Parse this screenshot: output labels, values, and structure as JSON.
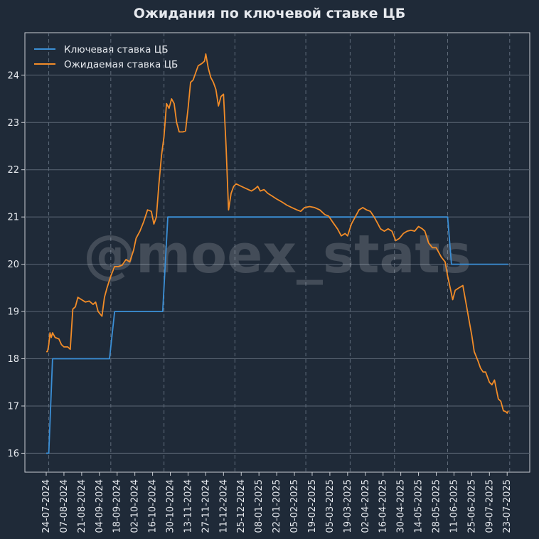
{
  "chart_data": {
    "type": "line",
    "title": "Ожидания по ключевой ставке ЦБ",
    "watermark": "@moex_stats",
    "xlabel": "",
    "ylabel": "",
    "x_start": "2024-07-24",
    "x_end": "2025-07-24",
    "ylim": [
      15.6,
      24.9
    ],
    "yticks": [
      16,
      17,
      18,
      19,
      20,
      21,
      22,
      23,
      24
    ],
    "xtick_labels": [
      "24-07-2024",
      "07-08-2024",
      "21-08-2024",
      "04-09-2024",
      "18-09-2024",
      "02-10-2024",
      "16-10-2024",
      "30-10-2024",
      "13-11-2024",
      "27-11-2024",
      "11-12-2024",
      "25-12-2024",
      "08-01-2025",
      "22-01-2025",
      "05-02-2025",
      "19-02-2025",
      "05-03-2025",
      "19-03-2025",
      "02-04-2025",
      "16-04-2025",
      "30-04-2025",
      "14-05-2025",
      "28-05-2025",
      "11-06-2025",
      "25-06-2025",
      "09-07-2025",
      "23-07-2025"
    ],
    "grid": {
      "horizontal": "solid",
      "vertical_dashed_at": [
        "2024-07-26",
        "2024-09-13",
        "2024-10-25",
        "2024-12-20",
        "2025-02-14",
        "2025-03-21",
        "2025-04-25",
        "2025-06-06",
        "2025-07-25"
      ]
    },
    "legend_position": "top-left",
    "colors": {
      "background": "#1f2a38",
      "key_rate": "#3b8fd6",
      "expected_rate": "#f28c28",
      "grid": "#5b6674",
      "axis": "#c8ccd2"
    },
    "series": [
      {
        "name": "Ключевая ставка ЦБ",
        "color": "#3b8fd6",
        "points": [
          [
            "2024-07-24",
            16
          ],
          [
            "2024-07-26",
            16
          ],
          [
            "2024-07-29",
            18
          ],
          [
            "2024-09-12",
            18
          ],
          [
            "2024-09-16",
            19
          ],
          [
            "2024-10-24",
            19
          ],
          [
            "2024-10-28",
            21
          ],
          [
            "2025-06-06",
            21
          ],
          [
            "2025-06-09",
            20
          ],
          [
            "2025-07-24",
            20
          ]
        ]
      },
      {
        "name": "Ожидаемая ставка ЦБ",
        "color": "#f28c28",
        "points": [
          [
            "2024-07-24",
            18.15
          ],
          [
            "2024-07-25",
            18.15
          ],
          [
            "2024-07-26",
            18.3
          ],
          [
            "2024-07-27",
            18.55
          ],
          [
            "2024-07-28",
            18.45
          ],
          [
            "2024-07-29",
            18.55
          ],
          [
            "2024-07-31",
            18.45
          ],
          [
            "2024-08-03",
            18.42
          ],
          [
            "2024-08-05",
            18.3
          ],
          [
            "2024-08-07",
            18.25
          ],
          [
            "2024-08-10",
            18.25
          ],
          [
            "2024-08-12",
            18.2
          ],
          [
            "2024-08-14",
            19.05
          ],
          [
            "2024-08-16",
            19.1
          ],
          [
            "2024-08-18",
            19.3
          ],
          [
            "2024-08-21",
            19.25
          ],
          [
            "2024-08-24",
            19.2
          ],
          [
            "2024-08-27",
            19.22
          ],
          [
            "2024-08-30",
            19.15
          ],
          [
            "2024-09-01",
            19.2
          ],
          [
            "2024-09-03",
            19.0
          ],
          [
            "2024-09-06",
            18.9
          ],
          [
            "2024-09-08",
            19.3
          ],
          [
            "2024-09-10",
            19.5
          ],
          [
            "2024-09-13",
            19.75
          ],
          [
            "2024-09-16",
            19.95
          ],
          [
            "2024-09-19",
            19.95
          ],
          [
            "2024-09-22",
            19.98
          ],
          [
            "2024-09-25",
            20.1
          ],
          [
            "2024-09-28",
            20.05
          ],
          [
            "2024-10-01",
            20.3
          ],
          [
            "2024-10-03",
            20.55
          ],
          [
            "2024-10-06",
            20.7
          ],
          [
            "2024-10-09",
            20.9
          ],
          [
            "2024-10-12",
            21.15
          ],
          [
            "2024-10-15",
            21.12
          ],
          [
            "2024-10-17",
            20.85
          ],
          [
            "2024-10-19",
            21.0
          ],
          [
            "2024-10-21",
            21.7
          ],
          [
            "2024-10-23",
            22.3
          ],
          [
            "2024-10-25",
            22.7
          ],
          [
            "2024-10-27",
            23.4
          ],
          [
            "2024-10-29",
            23.3
          ],
          [
            "2024-10-31",
            23.5
          ],
          [
            "2024-11-02",
            23.4
          ],
          [
            "2024-11-04",
            23.0
          ],
          [
            "2024-11-06",
            22.8
          ],
          [
            "2024-11-09",
            22.8
          ],
          [
            "2024-11-11",
            22.82
          ],
          [
            "2024-11-13",
            23.3
          ],
          [
            "2024-11-15",
            23.85
          ],
          [
            "2024-11-17",
            23.9
          ],
          [
            "2024-11-19",
            24.05
          ],
          [
            "2024-11-21",
            24.2
          ],
          [
            "2024-11-24",
            24.25
          ],
          [
            "2024-11-26",
            24.3
          ],
          [
            "2024-11-27",
            24.45
          ],
          [
            "2024-11-29",
            24.15
          ],
          [
            "2024-12-01",
            23.95
          ],
          [
            "2024-12-03",
            23.85
          ],
          [
            "2024-12-05",
            23.7
          ],
          [
            "2024-12-07",
            23.35
          ],
          [
            "2024-12-09",
            23.55
          ],
          [
            "2024-12-11",
            23.6
          ],
          [
            "2024-12-13",
            22.5
          ],
          [
            "2024-12-15",
            21.15
          ],
          [
            "2024-12-17",
            21.5
          ],
          [
            "2024-12-19",
            21.65
          ],
          [
            "2024-12-21",
            21.7
          ],
          [
            "2024-12-25",
            21.65
          ],
          [
            "2024-12-29",
            21.6
          ],
          [
            "2025-01-02",
            21.55
          ],
          [
            "2025-01-05",
            21.6
          ],
          [
            "2025-01-07",
            21.65
          ],
          [
            "2025-01-09",
            21.55
          ],
          [
            "2025-01-12",
            21.58
          ],
          [
            "2025-01-15",
            21.5
          ],
          [
            "2025-01-18",
            21.45
          ],
          [
            "2025-01-22",
            21.38
          ],
          [
            "2025-01-26",
            21.32
          ],
          [
            "2025-01-30",
            21.25
          ],
          [
            "2025-02-03",
            21.2
          ],
          [
            "2025-02-07",
            21.15
          ],
          [
            "2025-02-10",
            21.12
          ],
          [
            "2025-02-13",
            21.2
          ],
          [
            "2025-02-17",
            21.22
          ],
          [
            "2025-02-21",
            21.2
          ],
          [
            "2025-02-25",
            21.15
          ],
          [
            "2025-03-01",
            21.05
          ],
          [
            "2025-03-04",
            21.02
          ],
          [
            "2025-03-07",
            20.9
          ],
          [
            "2025-03-11",
            20.75
          ],
          [
            "2025-03-14",
            20.6
          ],
          [
            "2025-03-17",
            20.65
          ],
          [
            "2025-03-19",
            20.6
          ],
          [
            "2025-03-22",
            20.85
          ],
          [
            "2025-03-25",
            21.0
          ],
          [
            "2025-03-28",
            21.15
          ],
          [
            "2025-03-31",
            21.2
          ],
          [
            "2025-04-03",
            21.15
          ],
          [
            "2025-04-06",
            21.12
          ],
          [
            "2025-04-09",
            21.0
          ],
          [
            "2025-04-12",
            20.85
          ],
          [
            "2025-04-14",
            20.75
          ],
          [
            "2025-04-17",
            20.7
          ],
          [
            "2025-04-20",
            20.75
          ],
          [
            "2025-04-23",
            20.7
          ],
          [
            "2025-04-26",
            20.5
          ],
          [
            "2025-04-29",
            20.55
          ],
          [
            "2025-05-02",
            20.65
          ],
          [
            "2025-05-05",
            20.7
          ],
          [
            "2025-05-08",
            20.72
          ],
          [
            "2025-05-11",
            20.7
          ],
          [
            "2025-05-14",
            20.8
          ],
          [
            "2025-05-17",
            20.75
          ],
          [
            "2025-05-19",
            20.7
          ],
          [
            "2025-05-22",
            20.45
          ],
          [
            "2025-05-25",
            20.35
          ],
          [
            "2025-05-28",
            20.35
          ],
          [
            "2025-06-01",
            20.15
          ],
          [
            "2025-06-04",
            20.05
          ],
          [
            "2025-06-06",
            19.75
          ],
          [
            "2025-06-08",
            19.5
          ],
          [
            "2025-06-10",
            19.25
          ],
          [
            "2025-06-12",
            19.45
          ],
          [
            "2025-06-15",
            19.5
          ],
          [
            "2025-06-18",
            19.55
          ],
          [
            "2025-06-20",
            19.25
          ],
          [
            "2025-06-23",
            18.8
          ],
          [
            "2025-06-25",
            18.5
          ],
          [
            "2025-06-27",
            18.15
          ],
          [
            "2025-06-30",
            17.95
          ],
          [
            "2025-07-02",
            17.8
          ],
          [
            "2025-07-04",
            17.72
          ],
          [
            "2025-07-06",
            17.72
          ],
          [
            "2025-07-09",
            17.5
          ],
          [
            "2025-07-11",
            17.45
          ],
          [
            "2025-07-13",
            17.55
          ],
          [
            "2025-07-16",
            17.15
          ],
          [
            "2025-07-18",
            17.1
          ],
          [
            "2025-07-20",
            16.9
          ],
          [
            "2025-07-22",
            16.88
          ],
          [
            "2025-07-23",
            16.85
          ],
          [
            "2025-07-24",
            16.9
          ]
        ]
      }
    ]
  }
}
